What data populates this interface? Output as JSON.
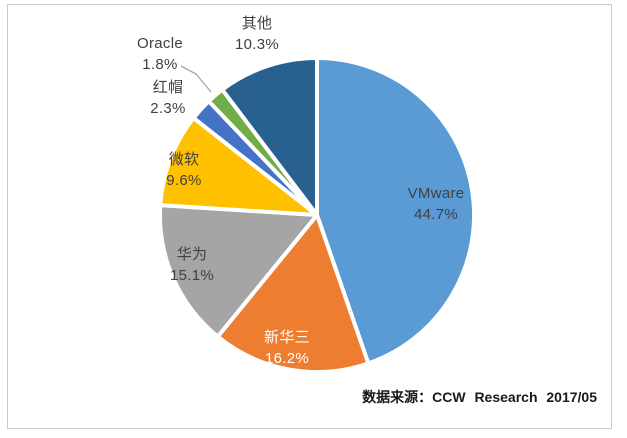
{
  "chart_data": {
    "type": "pie",
    "title": "",
    "direction": "clockwise",
    "start_angle_deg": 0,
    "total": 100.0,
    "slices": [
      {
        "name": "VMware",
        "value": 44.7,
        "pct": "44.7%",
        "color": "#5B9BD5",
        "label_placement": "inside"
      },
      {
        "name": "新华三",
        "value": 16.2,
        "pct": "16.2%",
        "color": "#ED7D31",
        "label_placement": "inside"
      },
      {
        "name": "华为",
        "value": 15.1,
        "pct": "15.1%",
        "color": "#A5A5A5",
        "label_placement": "inside"
      },
      {
        "name": "微软",
        "value": 9.6,
        "pct": "9.6%",
        "color": "#FFC000",
        "label_placement": "inside"
      },
      {
        "name": "红帽",
        "value": 2.3,
        "pct": "2.3%",
        "color": "#4472C4",
        "label_placement": "outside"
      },
      {
        "name": "Oracle",
        "value": 1.8,
        "pct": "1.8%",
        "color": "#70AD47",
        "label_placement": "outside-with-leader"
      },
      {
        "name": "其他",
        "value": 10.3,
        "pct": "10.3%",
        "color": "#28608F",
        "label_placement": "outside"
      }
    ],
    "legend": "none",
    "style": {
      "slice_border_color": "#FFFFFF",
      "label_text_color": "#404040",
      "inside_white_label_slice": "新华三",
      "leader_line_color": "#A6A6A6"
    }
  },
  "source": {
    "text": "数据来源：CCW Research 2017/05"
  }
}
